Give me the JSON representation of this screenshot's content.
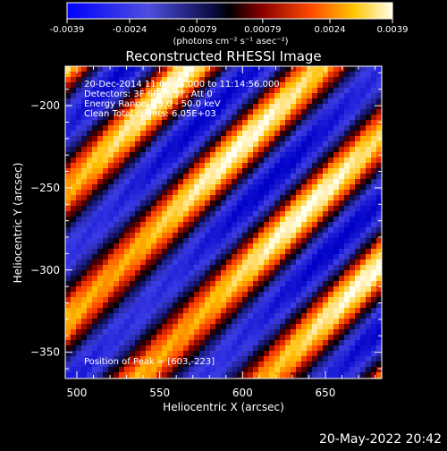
{
  "colorbar": {
    "ticks": [
      "-0.0039",
      "-0.0024",
      "-0.00079",
      "0.00079",
      "0.0024",
      "0.0039"
    ],
    "unit_label": "(photons cm⁻² s⁻¹ asec⁻²)",
    "vmin": -0.0039,
    "vmax": 0.0039
  },
  "chart_data": {
    "type": "heatmap",
    "title": "Reconstructed RHESSI Image",
    "xlabel": "Heliocentric X (arcsec)",
    "ylabel": "Heliocentric Y (arcsec)",
    "xlim": [
      493,
      684
    ],
    "ylim": [
      -366,
      -176
    ],
    "xticks": [
      500,
      550,
      600,
      650
    ],
    "yticks": [
      -200,
      -250,
      -300,
      -350
    ],
    "pattern": "diagonal fringes rising from lower-left to upper-right",
    "annotations": [
      "20-Dec-2014 11:08:56.000 to 11:14:56.000",
      "Detectors: 3F 6F 7F 9F, Att 0",
      "Energy Range: 25.0 - 50.0 keV",
      "Clean     Total counts: 6.05E+03"
    ],
    "peak_label": "Position of Peak = [603,-223]"
  },
  "footer": {
    "timestamp": "20-May-2022 20:42"
  }
}
